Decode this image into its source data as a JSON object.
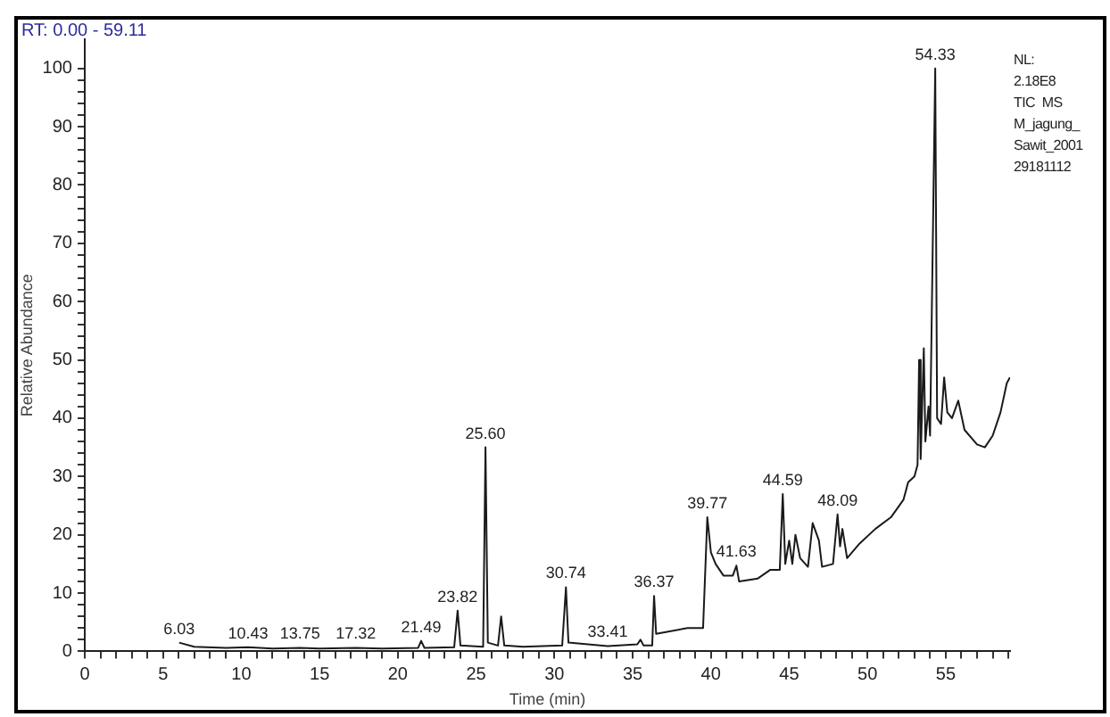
{
  "chart_data": {
    "type": "line",
    "xlabel": "Time (min)",
    "ylabel": "Relative Abundance",
    "x": [
      6.03,
      7,
      9,
      10.43,
      12,
      13.75,
      15,
      17.32,
      19,
      21.3,
      21.49,
      21.7,
      23.6,
      23.82,
      24.0,
      25.45,
      25.6,
      25.75,
      26.4,
      26.6,
      26.8,
      28,
      30.5,
      30.74,
      30.9,
      33.41,
      35.3,
      35.5,
      35.7,
      36.25,
      36.37,
      36.5,
      38.5,
      39.5,
      39.77,
      40,
      40.3,
      40.8,
      41.4,
      41.63,
      41.8,
      43,
      43.8,
      44.4,
      44.59,
      44.75,
      45,
      45.2,
      45.4,
      45.7,
      46.2,
      46.5,
      46.9,
      47.1,
      47.8,
      48.09,
      48.25,
      48.4,
      48.7,
      49.5,
      50.5,
      51.5,
      52.3,
      52.6,
      53.0,
      53.2,
      53.3,
      53.4,
      53.6,
      53.7,
      53.9,
      54.0,
      54.33,
      54.45,
      54.7,
      54.9,
      55.1,
      55.4,
      55.8,
      56.2,
      57,
      57.5,
      58,
      58.5,
      58.9,
      59.1
    ],
    "series": [
      {
        "color": "#1a1a1a",
        "values": [
          1.5,
          0.8,
          0.6,
          0.7,
          0.5,
          0.6,
          0.5,
          0.6,
          0.5,
          0.6,
          1.8,
          0.6,
          0.7,
          7,
          1.0,
          0.8,
          35,
          1.5,
          1,
          6,
          1,
          0.8,
          1,
          11,
          1.5,
          0.9,
          1.2,
          2,
          1,
          1,
          9.5,
          3,
          4,
          4,
          23,
          17,
          15,
          13,
          13,
          14.7,
          12,
          12.5,
          14,
          14,
          27,
          15,
          19,
          15,
          20,
          16,
          14.5,
          22,
          19,
          14.5,
          15,
          23.5,
          18,
          21,
          16,
          18.5,
          21,
          23,
          26,
          29,
          30,
          32,
          50,
          33,
          52,
          36,
          42,
          37,
          100,
          40,
          39,
          47,
          41,
          40,
          43,
          38,
          35.5,
          35,
          37,
          41,
          46,
          47
        ]
      }
    ],
    "xlim": [
      0,
      59.11
    ],
    "ylim": [
      0,
      105
    ],
    "xticks": [
      0,
      {
        "value": 1,
        "label": null
      },
      {
        "value": 2,
        "label": null
      },
      {
        "value": 3,
        "label": null
      },
      {
        "value": 4,
        "label": null
      },
      5,
      {
        "value": 6,
        "label": null
      },
      {
        "value": 7,
        "label": null
      },
      {
        "value": 8,
        "label": null
      },
      {
        "value": 9,
        "label": null
      },
      10,
      {
        "value": 11,
        "label": null
      },
      {
        "value": 12,
        "label": null
      },
      {
        "value": 13,
        "label": null
      },
      {
        "value": 14,
        "label": null
      },
      15,
      {
        "value": 16,
        "label": null
      },
      {
        "value": 17,
        "label": null
      },
      {
        "value": 18,
        "label": null
      },
      {
        "value": 19,
        "label": null
      },
      20,
      {
        "value": 21,
        "label": null
      },
      {
        "value": 22,
        "label": null
      },
      {
        "value": 23,
        "label": null
      },
      {
        "value": 24,
        "label": null
      },
      25,
      {
        "value": 26,
        "label": null
      },
      {
        "value": 27,
        "label": null
      },
      {
        "value": 28,
        "label": null
      },
      {
        "value": 29,
        "label": null
      },
      30,
      {
        "value": 31,
        "label": null
      },
      {
        "value": 32,
        "label": null
      },
      {
        "value": 33,
        "label": null
      },
      {
        "value": 34,
        "label": null
      },
      35,
      {
        "value": 36,
        "label": null
      },
      {
        "value": 37,
        "label": null
      },
      {
        "value": 38,
        "label": null
      },
      {
        "value": 39,
        "label": null
      },
      40,
      {
        "value": 41,
        "label": null
      },
      {
        "value": 42,
        "label": null
      },
      {
        "value": 43,
        "label": null
      },
      {
        "value": 44,
        "label": null
      },
      45,
      {
        "value": 46,
        "label": null
      },
      {
        "value": 47,
        "label": null
      },
      {
        "value": 48,
        "label": null
      },
      {
        "value": 49,
        "label": null
      },
      50,
      {
        "value": 51,
        "label": null
      },
      {
        "value": 52,
        "label": null
      },
      {
        "value": 53,
        "label": null
      },
      {
        "value": 54,
        "label": null
      },
      55,
      {
        "value": 56,
        "label": null
      },
      {
        "value": 57,
        "label": null
      },
      {
        "value": 58,
        "label": null
      },
      {
        "value": 59,
        "label": null
      }
    ],
    "yticks": [
      0,
      {
        "value": 2,
        "label": null
      },
      {
        "value": 4,
        "label": null
      },
      {
        "value": 6,
        "label": null
      },
      {
        "value": 8,
        "label": null
      },
      10,
      {
        "value": 12,
        "label": null
      },
      {
        "value": 14,
        "label": null
      },
      {
        "value": 16,
        "label": null
      },
      {
        "value": 18,
        "label": null
      },
      20,
      {
        "value": 22,
        "label": null
      },
      {
        "value": 24,
        "label": null
      },
      {
        "value": 26,
        "label": null
      },
      {
        "value": 28,
        "label": null
      },
      30,
      {
        "value": 32,
        "label": null
      },
      {
        "value": 34,
        "label": null
      },
      {
        "value": 36,
        "label": null
      },
      {
        "value": 38,
        "label": null
      },
      40,
      {
        "value": 42,
        "label": null
      },
      {
        "value": 44,
        "label": null
      },
      {
        "value": 46,
        "label": null
      },
      {
        "value": 48,
        "label": null
      },
      50,
      {
        "value": 52,
        "label": null
      },
      {
        "value": 54,
        "label": null
      },
      {
        "value": 56,
        "label": null
      },
      {
        "value": 58,
        "label": null
      },
      60,
      {
        "value": 62,
        "label": null
      },
      {
        "value": 64,
        "label": null
      },
      {
        "value": 66,
        "label": null
      },
      {
        "value": 68,
        "label": null
      },
      70,
      {
        "value": 72,
        "label": null
      },
      {
        "value": 74,
        "label": null
      },
      {
        "value": 76,
        "label": null
      },
      {
        "value": 78,
        "label": null
      },
      80,
      {
        "value": 82,
        "label": null
      },
      {
        "value": 84,
        "label": null
      },
      {
        "value": 86,
        "label": null
      },
      {
        "value": 88,
        "label": null
      },
      90,
      {
        "value": 92,
        "label": null
      },
      {
        "value": 94,
        "label": null
      },
      {
        "value": 96,
        "label": null
      },
      {
        "value": 98,
        "label": null
      },
      100
    ],
    "grid": false,
    "legend": false,
    "marker": "none",
    "line_style": "solid",
    "annotations": [
      "RT: 0.00 - 59.11",
      "NL:",
      "2.18E8",
      "TIC  MS",
      "M_jagung_",
      "Sawit_2001",
      "29181112",
      {
        "text": "6.03",
        "x": 6.03,
        "y": 1.5
      },
      {
        "text": "10.43",
        "x": 10.43,
        "y": 0.7
      },
      {
        "text": "13.75",
        "x": 13.75,
        "y": 0.6
      },
      {
        "text": "17.32",
        "x": 17.32,
        "y": 0.6
      },
      {
        "text": "21.49",
        "x": 21.49,
        "y": 1.8
      },
      {
        "text": "23.82",
        "x": 23.82,
        "y": 7
      },
      {
        "text": "25.60",
        "x": 25.6,
        "y": 35
      },
      {
        "text": "30.74",
        "x": 30.74,
        "y": 11
      },
      {
        "text": "33.41",
        "x": 33.41,
        "y": 0.9
      },
      {
        "text": "36.37",
        "x": 36.37,
        "y": 9.5
      },
      {
        "text": "39.77",
        "x": 39.77,
        "y": 23
      },
      {
        "text": "41.63",
        "x": 41.63,
        "y": 14.7
      },
      {
        "text": "44.59",
        "x": 44.59,
        "y": 27
      },
      {
        "text": "48.09",
        "x": 48.09,
        "y": 23.5
      },
      {
        "text": "54.33",
        "x": 54.33,
        "y": 100
      }
    ]
  }
}
